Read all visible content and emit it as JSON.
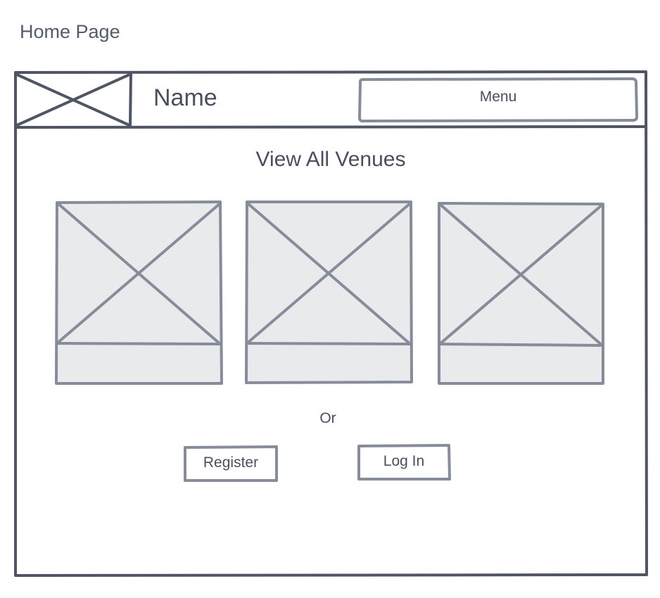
{
  "page": {
    "label": "Home Page"
  },
  "header": {
    "logo_icon": "image-placeholder-icon",
    "site_name": "Name",
    "menu_label": "Menu"
  },
  "main": {
    "view_all_label": "View All Venues",
    "venue_cards": [
      {
        "image_icon": "image-placeholder-icon"
      },
      {
        "image_icon": "image-placeholder-icon"
      },
      {
        "image_icon": "image-placeholder-icon"
      }
    ],
    "separator_text": "Or",
    "register_label": "Register",
    "login_label": "Log In"
  },
  "colors": {
    "frame_stroke": "#4f5563",
    "placeholder_stroke": "#868c99",
    "placeholder_fill": "#e9eaec",
    "text": "#4a4f5c"
  }
}
